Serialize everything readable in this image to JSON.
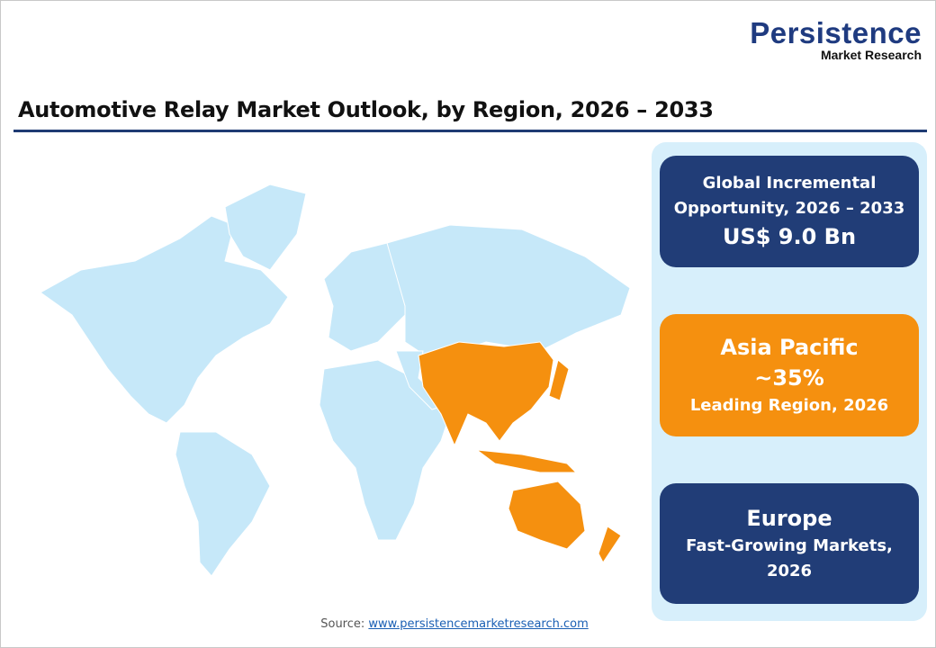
{
  "logo": {
    "name": "Persistence",
    "subtitle": "Market Research"
  },
  "title": "Automotive Relay Market Outlook, by Region, 2026 – 2033",
  "map": {
    "base_color": "#c6e8f9",
    "highlight_color": "#f5900f",
    "highlighted_region": "Asia Pacific"
  },
  "cards": [
    {
      "line1": "Global Incremental",
      "line2": "Opportunity, 2026 – 2033",
      "value": "US$ 9.0 Bn",
      "color": "#213d77"
    },
    {
      "region": "Asia Pacific",
      "value": "~35%",
      "caption": "Leading Region, 2026",
      "color": "#f5900f"
    },
    {
      "region": "Europe",
      "caption1": "Fast-Growing Markets,",
      "caption2": "2026",
      "color": "#213d77"
    }
  ],
  "source": {
    "label": "Source:",
    "link": "www.persistencemarketresearch.com"
  },
  "colors": {
    "navy": "#213d77",
    "orange": "#f5900f",
    "panel": "#d7effb"
  }
}
